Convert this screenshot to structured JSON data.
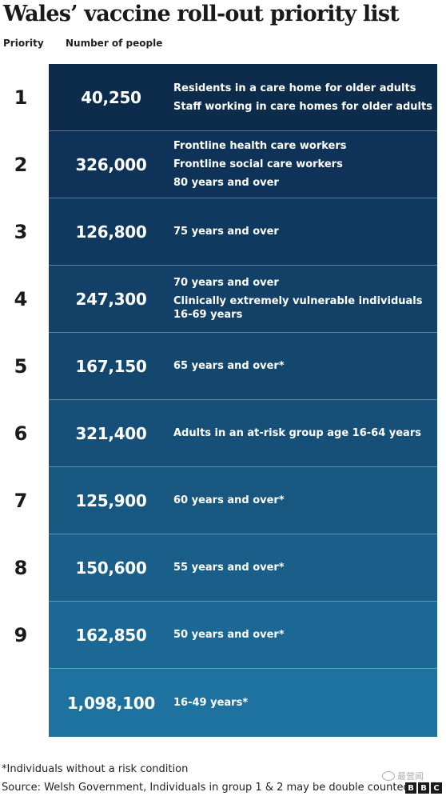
{
  "title": "Wales’ vaccine roll-out priority list",
  "headers": {
    "priority": "Priority",
    "people": "Number of people"
  },
  "colors": {
    "row_gradient": [
      "#0d2c4c",
      "#0f3258",
      "#10395f",
      "#124066",
      "#14476d",
      "#164f77",
      "#185780",
      "#1a5f8a",
      "#1c6894",
      "#1e72a0"
    ]
  },
  "chart_data": {
    "type": "table",
    "title": "Wales’ vaccine roll-out priority list",
    "rows": [
      {
        "priority": "1",
        "people": "40,250",
        "groups": [
          "Residents in a care home for older adults",
          "Staff working in care homes for older adults"
        ]
      },
      {
        "priority": "2",
        "people": "326,000",
        "groups": [
          "Frontline health care workers",
          "Frontline social care workers",
          "80 years and over"
        ]
      },
      {
        "priority": "3",
        "people": "126,800",
        "groups": [
          "75 years and over"
        ]
      },
      {
        "priority": "4",
        "people": "247,300",
        "groups": [
          "70 years and over",
          "Clinically extremely vulnerable individuals 16-69 years"
        ]
      },
      {
        "priority": "5",
        "people": "167,150",
        "groups": [
          "65 years and over*"
        ]
      },
      {
        "priority": "6",
        "people": "321,400",
        "groups": [
          "Adults in an at-risk group age 16-64 years"
        ]
      },
      {
        "priority": "7",
        "people": "125,900",
        "groups": [
          "60 years and over*"
        ]
      },
      {
        "priority": "8",
        "people": "150,600",
        "groups": [
          "55 years and over*"
        ]
      },
      {
        "priority": "9",
        "people": "162,850",
        "groups": [
          "50 years and over*"
        ]
      },
      {
        "priority": "",
        "people": "1,098,100",
        "groups": [
          "16-49 years*"
        ]
      }
    ]
  },
  "footnote": "*Individuals without a risk condition",
  "source": "Source: Welsh Government, Individuals in group 1 & 2 may be double counted",
  "logo_letters": [
    "B",
    "B",
    "C"
  ],
  "watermark": "最营闻"
}
